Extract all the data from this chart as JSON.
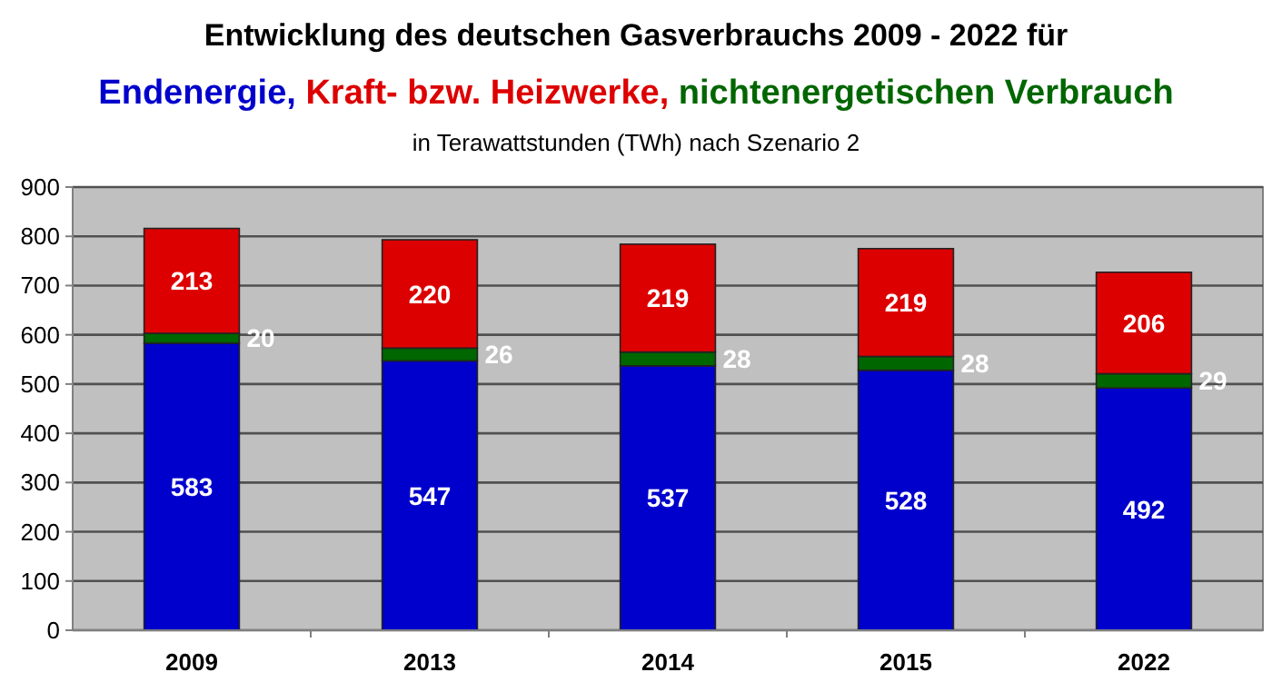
{
  "chart_data": {
    "type": "bar",
    "title": "Entwicklung des deutschen Gasverbrauchs 2009 - 2022 für",
    "subtitle": "in Terawattstunden (TWh) nach Szenario 2",
    "categories": [
      "2009",
      "2013",
      "2014",
      "2015",
      "2022"
    ],
    "stacked": true,
    "data_labels": true,
    "grid": "y",
    "legend": "top",
    "series": [
      {
        "name": "Endenergie,",
        "color": "#0000cc",
        "values": [
          583,
          547,
          537,
          528,
          492
        ]
      },
      {
        "name": "nichtenergetischen Verbrauch",
        "color": "#006600",
        "values": [
          20,
          26,
          28,
          28,
          29
        ]
      },
      {
        "name": "Kraft- bzw. Heizwerke,",
        "color": "#dd0000",
        "values": [
          213,
          220,
          219,
          219,
          206
        ]
      }
    ],
    "ylim": [
      0,
      900
    ],
    "yticks": [
      0,
      100,
      200,
      300,
      400,
      500,
      600,
      700,
      800,
      900
    ]
  }
}
